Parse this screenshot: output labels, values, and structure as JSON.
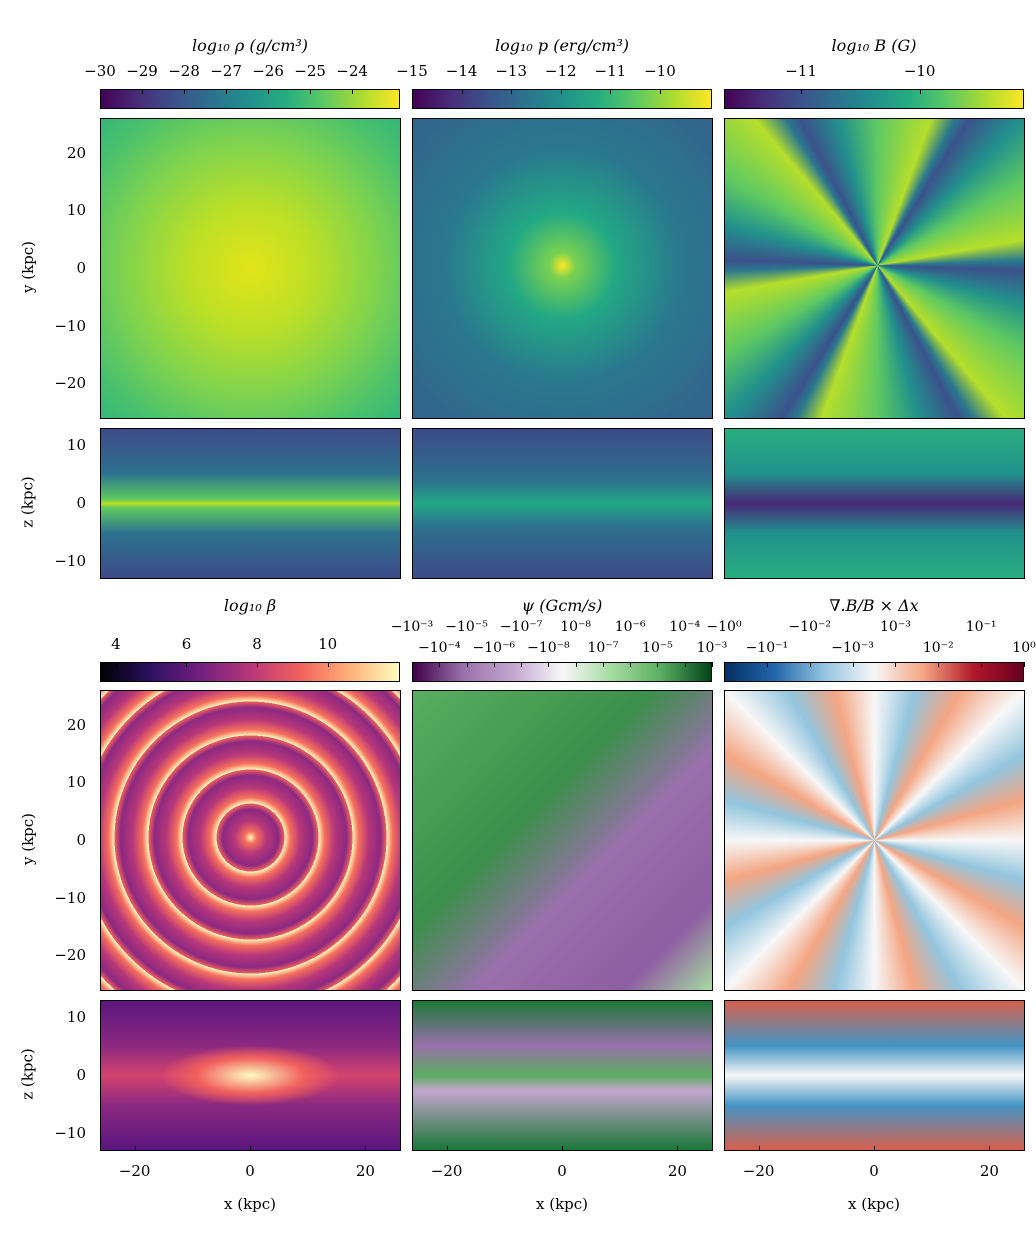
{
  "chart_data": {
    "type": "heatmap",
    "xlabel": "x (kpc)",
    "ylabel_xy": "y (kpc)",
    "ylabel_xz": "z (kpc)",
    "x_ticks": [
      -20,
      0,
      20
    ],
    "x_range": [
      -26,
      26
    ],
    "y_ticks_xy": [
      20,
      10,
      0,
      -10,
      -20
    ],
    "y_range_xy": [
      -26,
      26
    ],
    "z_ticks": [
      10,
      0,
      -10
    ],
    "z_range": [
      -13,
      13
    ],
    "panels": [
      {
        "title": "log10 ρ (g/cm³)",
        "cmap": "viridis",
        "cbar_ticks": [
          -30,
          -29,
          -28,
          -27,
          -26,
          -25,
          -24
        ],
        "cbar_range": [
          -30,
          -22.86
        ]
      },
      {
        "title": "log10 p (erg/cm³)",
        "cmap": "viridis",
        "cbar_ticks": [
          -15,
          -14,
          -13,
          -12,
          -11,
          -10
        ],
        "cbar_range": [
          -15,
          -8.95
        ]
      },
      {
        "title": "log10 B (G)",
        "cmap": "viridis",
        "cbar_ticks": [
          -11,
          -10
        ],
        "cbar_range": [
          -11.65,
          -9.12
        ]
      },
      {
        "title": "log10 β",
        "cmap": "magma",
        "cbar_ticks": [
          4,
          6,
          8,
          10
        ],
        "cbar_range": [
          3.55,
          12.05
        ]
      },
      {
        "title": "ψ (Gcm/s)",
        "cmap": "PRGn",
        "cbar_tick_labels": [
          "−10⁻³",
          "−10⁻⁴",
          "−10⁻⁵",
          "−10⁻⁶",
          "−10⁻⁷",
          "−10⁻⁸",
          "10⁻⁸",
          "10⁻⁷",
          "10⁻⁶",
          "10⁻⁵",
          "10⁻⁴",
          "10⁻³"
        ]
      },
      {
        "title": "∇.B/B × Δx",
        "cmap": "RdBu_r",
        "cbar_tick_labels": [
          "−10⁰",
          "−10⁻¹",
          "−10⁻²",
          "−10⁻³",
          "10⁻³",
          "10⁻²",
          "10⁻¹",
          "10⁰"
        ]
      }
    ]
  }
}
